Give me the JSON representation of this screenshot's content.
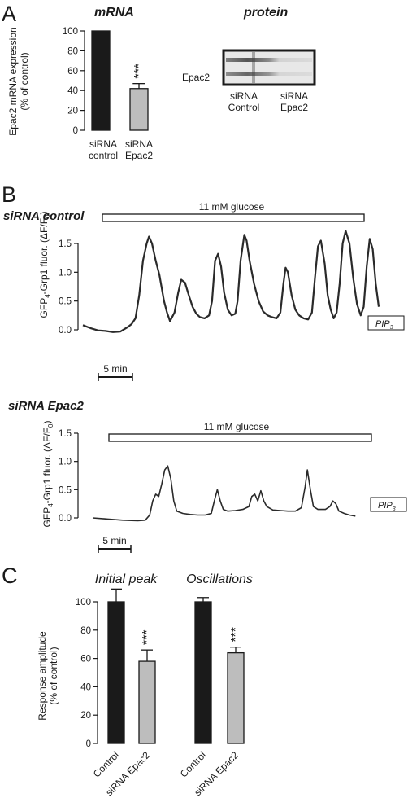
{
  "panels": {
    "a": "A",
    "b": "B",
    "c": "C"
  },
  "panel_a": {
    "mrna_title": "mRNA",
    "protein_title": "protein",
    "blot_label": "Epac2",
    "blot_lanes": [
      {
        "line1": "siRNA",
        "line2": "Control"
      },
      {
        "line1": "siRNA",
        "line2": "Epac2"
      }
    ],
    "ylabel_line1": "Epac2 mRNA expression",
    "ylabel_line2": "(% of control)",
    "bar_categories": [
      {
        "line1": "siRNA",
        "line2": "control"
      },
      {
        "line1": "siRNA",
        "line2": "Epac2"
      }
    ],
    "significance": "***"
  },
  "panel_b": {
    "trace1_title": "siRNA control",
    "trace2_title": "siRNA Epac2",
    "stimulus_label": "11 mM glucose",
    "scale_label": "5 min",
    "probe_label": "PIP",
    "probe_sub": "3",
    "ylabel_pre": "GFP",
    "ylabel_sub": "4",
    "ylabel_post": "-Grp1 fluor. (ΔF/F",
    "ylabel_sub2": "0",
    "ylabel_end": ")"
  },
  "panel_c": {
    "group1_title": "Initial peak",
    "group2_title": "Oscillations",
    "ylabel_line1": "Response amplitude",
    "ylabel_line2": "(% of control)",
    "bar_labels": [
      "Control",
      "siRNA Epac2",
      "Control",
      "siRNA Epac2"
    ],
    "significance": "***"
  },
  "colors": {
    "control_bar": "#1a1a1a",
    "epac2_bar": "#bdbdbd",
    "trace": "#2a2a2a"
  },
  "chart_data": [
    {
      "type": "bar",
      "id": "mrna",
      "categories": [
        "siRNA control",
        "siRNA Epac2"
      ],
      "values": [
        100,
        42
      ],
      "errors": [
        0,
        5
      ],
      "ylim": [
        0,
        100
      ],
      "yticks": [
        0,
        20,
        40,
        60,
        80,
        100
      ],
      "ylabel": "Epac2 mRNA expression (% of control)"
    },
    {
      "type": "line",
      "id": "trace_control",
      "title": "siRNA control",
      "ylim": [
        0,
        1.5
      ],
      "yticks": [
        0.0,
        0.5,
        1.0,
        1.5
      ],
      "x_units": "min",
      "x_range": [
        0,
        42
      ],
      "points": [
        [
          0,
          0.08
        ],
        [
          1,
          0.03
        ],
        [
          2,
          -0.01
        ],
        [
          3,
          -0.02
        ],
        [
          4,
          -0.04
        ],
        [
          5,
          -0.03
        ],
        [
          6,
          0.05
        ],
        [
          6.5,
          0.1
        ],
        [
          7,
          0.2
        ],
        [
          7.5,
          0.6
        ],
        [
          8,
          1.2
        ],
        [
          8.5,
          1.5
        ],
        [
          8.8,
          1.62
        ],
        [
          9.2,
          1.5
        ],
        [
          9.7,
          1.2
        ],
        [
          10.2,
          0.95
        ],
        [
          10.8,
          0.5
        ],
        [
          11.2,
          0.3
        ],
        [
          11.6,
          0.15
        ],
        [
          12.2,
          0.3
        ],
        [
          12.7,
          0.65
        ],
        [
          13.1,
          0.87
        ],
        [
          13.6,
          0.82
        ],
        [
          14.1,
          0.6
        ],
        [
          14.6,
          0.4
        ],
        [
          15.1,
          0.28
        ],
        [
          15.6,
          0.22
        ],
        [
          16.2,
          0.2
        ],
        [
          16.8,
          0.25
        ],
        [
          17.2,
          0.5
        ],
        [
          17.6,
          1.2
        ],
        [
          18.0,
          1.32
        ],
        [
          18.4,
          1.1
        ],
        [
          18.8,
          0.65
        ],
        [
          19.3,
          0.35
        ],
        [
          19.8,
          0.25
        ],
        [
          20.3,
          0.28
        ],
        [
          20.6,
          0.5
        ],
        [
          21.0,
          1.2
        ],
        [
          21.5,
          1.65
        ],
        [
          21.8,
          1.55
        ],
        [
          22.2,
          1.2
        ],
        [
          22.8,
          0.8
        ],
        [
          23.4,
          0.5
        ],
        [
          24.0,
          0.32
        ],
        [
          24.6,
          0.25
        ],
        [
          25.2,
          0.22
        ],
        [
          25.8,
          0.2
        ],
        [
          26.3,
          0.3
        ],
        [
          26.7,
          0.8
        ],
        [
          27.0,
          1.08
        ],
        [
          27.3,
          1.0
        ],
        [
          27.8,
          0.6
        ],
        [
          28.3,
          0.35
        ],
        [
          28.8,
          0.25
        ],
        [
          29.4,
          0.2
        ],
        [
          30.0,
          0.18
        ],
        [
          30.5,
          0.3
        ],
        [
          30.9,
          0.9
        ],
        [
          31.3,
          1.45
        ],
        [
          31.7,
          1.55
        ],
        [
          32.2,
          1.15
        ],
        [
          32.6,
          0.6
        ],
        [
          33.0,
          0.35
        ],
        [
          33.4,
          0.2
        ],
        [
          33.8,
          0.3
        ],
        [
          34.2,
          0.8
        ],
        [
          34.6,
          1.5
        ],
        [
          35.0,
          1.72
        ],
        [
          35.5,
          1.5
        ],
        [
          36.0,
          0.9
        ],
        [
          36.5,
          0.45
        ],
        [
          37.0,
          0.25
        ],
        [
          37.4,
          0.4
        ],
        [
          37.8,
          1.1
        ],
        [
          38.2,
          1.58
        ],
        [
          38.6,
          1.4
        ],
        [
          39.0,
          0.8
        ],
        [
          39.4,
          0.4
        ]
      ]
    },
    {
      "type": "line",
      "id": "trace_epac2",
      "title": "siRNA Epac2",
      "ylim": [
        0,
        1.5
      ],
      "yticks": [
        0.0,
        0.5,
        1.0,
        1.5
      ],
      "x_units": "min",
      "x_range": [
        0,
        42
      ],
      "points": [
        [
          0,
          0.0
        ],
        [
          2,
          -0.02
        ],
        [
          4,
          -0.04
        ],
        [
          6,
          -0.05
        ],
        [
          7,
          -0.04
        ],
        [
          7.6,
          0.05
        ],
        [
          8.0,
          0.3
        ],
        [
          8.4,
          0.42
        ],
        [
          8.8,
          0.38
        ],
        [
          9.2,
          0.6
        ],
        [
          9.6,
          0.85
        ],
        [
          10.0,
          0.92
        ],
        [
          10.4,
          0.7
        ],
        [
          10.8,
          0.3
        ],
        [
          11.2,
          0.12
        ],
        [
          12,
          0.08
        ],
        [
          13,
          0.06
        ],
        [
          14,
          0.05
        ],
        [
          15,
          0.05
        ],
        [
          15.8,
          0.08
        ],
        [
          16.2,
          0.3
        ],
        [
          16.6,
          0.5
        ],
        [
          17.0,
          0.3
        ],
        [
          17.4,
          0.15
        ],
        [
          18,
          0.12
        ],
        [
          19,
          0.13
        ],
        [
          20,
          0.15
        ],
        [
          20.8,
          0.2
        ],
        [
          21.2,
          0.38
        ],
        [
          21.6,
          0.42
        ],
        [
          22.0,
          0.3
        ],
        [
          22.4,
          0.48
        ],
        [
          22.8,
          0.3
        ],
        [
          23.2,
          0.2
        ],
        [
          24,
          0.14
        ],
        [
          25,
          0.13
        ],
        [
          26,
          0.12
        ],
        [
          27,
          0.12
        ],
        [
          27.8,
          0.18
        ],
        [
          28.3,
          0.55
        ],
        [
          28.6,
          0.85
        ],
        [
          29.0,
          0.5
        ],
        [
          29.4,
          0.2
        ],
        [
          30,
          0.15
        ],
        [
          31,
          0.15
        ],
        [
          31.6,
          0.2
        ],
        [
          32.0,
          0.3
        ],
        [
          32.4,
          0.25
        ],
        [
          32.8,
          0.12
        ],
        [
          33.5,
          0.08
        ],
        [
          34.2,
          0.05
        ],
        [
          35,
          0.03
        ]
      ]
    },
    {
      "type": "bar",
      "id": "response",
      "categories": [
        "Control",
        "siRNA Epac2",
        "Control",
        "siRNA Epac2"
      ],
      "groups": [
        "Initial peak",
        "Initial peak",
        "Oscillations",
        "Oscillations"
      ],
      "values": [
        100,
        58,
        100,
        64
      ],
      "errors": [
        9,
        8,
        3,
        4
      ],
      "ylim": [
        0,
        100
      ],
      "yticks": [
        0,
        20,
        40,
        60,
        80,
        100
      ],
      "ylabel": "Response amplitude (% of control)"
    }
  ]
}
